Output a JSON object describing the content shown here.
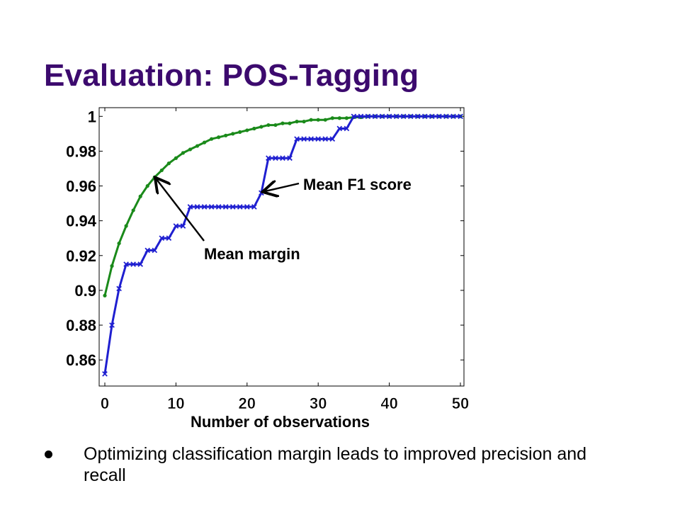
{
  "slide": {
    "title": "Evaluation: POS-Tagging",
    "bullet": "Optimizing classification margin leads to improved precision and recall"
  },
  "colors": {
    "title": "#3c0a6e",
    "margin_series": "#1a8a1a",
    "f1_series": "#1f1fd0",
    "axis": "#000000"
  },
  "chart_data": {
    "type": "line",
    "title": "",
    "xlabel": "Number of observations",
    "ylabel": "",
    "xlim": [
      0,
      50
    ],
    "ylim": [
      0.845,
      1.005
    ],
    "xticks": [
      0,
      10,
      20,
      30,
      40,
      50
    ],
    "xtick_labels": [
      "0",
      "10",
      "20",
      "30",
      "40",
      "50"
    ],
    "yticks": [
      0.86,
      0.88,
      0.9,
      0.92,
      0.94,
      0.96,
      0.98,
      1
    ],
    "ytick_labels": [
      "0.86",
      "0.88",
      "0.9",
      "0.92",
      "0.94",
      "0.96",
      "0.98",
      "1"
    ],
    "grid": false,
    "annotations": [
      {
        "text": "Mean F1 score",
        "series": "f1",
        "x": 22,
        "y": 0.956
      },
      {
        "text": "Mean margin",
        "series": "margin",
        "x": 7,
        "y": 0.965
      }
    ],
    "series": [
      {
        "key": "margin",
        "color": "#1a8a1a",
        "marker": "dot",
        "x": [
          0,
          1,
          2,
          3,
          4,
          5,
          6,
          7,
          8,
          9,
          10,
          11,
          12,
          13,
          14,
          15,
          16,
          17,
          18,
          19,
          20,
          21,
          22,
          23,
          24,
          25,
          26,
          27,
          28,
          29,
          30,
          31,
          32,
          33,
          34,
          35,
          36,
          37,
          38,
          39,
          40,
          41,
          42,
          43,
          44,
          45,
          46,
          47,
          48,
          49,
          50
        ],
        "values": [
          0.897,
          0.914,
          0.927,
          0.937,
          0.946,
          0.954,
          0.96,
          0.965,
          0.969,
          0.973,
          0.976,
          0.979,
          0.981,
          0.983,
          0.985,
          0.987,
          0.988,
          0.989,
          0.99,
          0.991,
          0.992,
          0.993,
          0.994,
          0.995,
          0.995,
          0.996,
          0.996,
          0.997,
          0.997,
          0.998,
          0.998,
          0.998,
          0.999,
          0.999,
          0.999,
          0.9995,
          0.9995,
          1,
          1,
          1,
          1,
          1,
          1,
          1,
          1,
          1,
          1,
          1,
          1,
          1,
          1
        ]
      },
      {
        "key": "f1",
        "color": "#1f1fd0",
        "marker": "x",
        "x": [
          0,
          1,
          2,
          3,
          4,
          5,
          6,
          7,
          8,
          9,
          10,
          11,
          12,
          13,
          14,
          15,
          16,
          17,
          18,
          19,
          20,
          21,
          22,
          23,
          24,
          25,
          26,
          27,
          28,
          29,
          30,
          31,
          32,
          33,
          34,
          35,
          36,
          37,
          38,
          39,
          40,
          41,
          42,
          43,
          44,
          45,
          46,
          47,
          48,
          49,
          50
        ],
        "values": [
          0.852,
          0.88,
          0.901,
          0.915,
          0.915,
          0.915,
          0.923,
          0.923,
          0.93,
          0.93,
          0.937,
          0.937,
          0.948,
          0.948,
          0.948,
          0.948,
          0.948,
          0.948,
          0.948,
          0.948,
          0.948,
          0.948,
          0.956,
          0.976,
          0.976,
          0.976,
          0.976,
          0.987,
          0.987,
          0.987,
          0.987,
          0.987,
          0.987,
          0.993,
          0.993,
          1,
          1,
          1,
          1,
          1,
          1,
          1,
          1,
          1,
          1,
          1,
          1,
          1,
          1,
          1,
          1
        ]
      }
    ]
  }
}
